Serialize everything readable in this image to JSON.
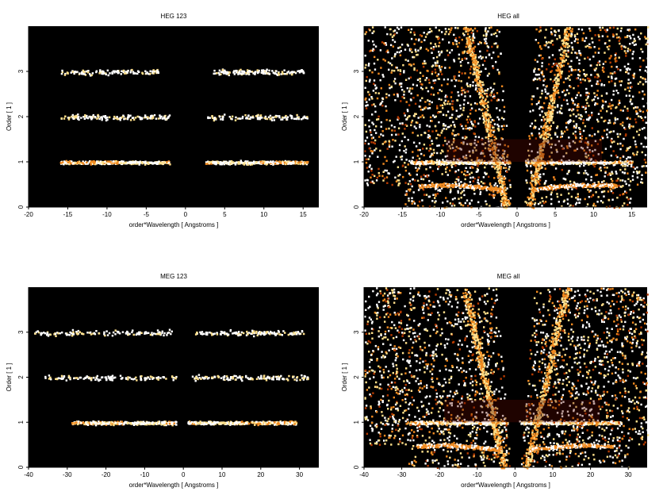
{
  "chart_data": [
    {
      "type": "heatmap",
      "title": "HEG 123",
      "xlabel": "order*Wavelength [ Angstroms ]",
      "ylabel": "Order [ 1 ]",
      "xlim": [
        -20,
        17
      ],
      "ylim": [
        0,
        4
      ],
      "xticks": [
        -20,
        -15,
        -10,
        -5,
        0,
        5,
        10,
        15
      ],
      "yticks": [
        0,
        1,
        2,
        3
      ],
      "grid": false,
      "background": "#000000",
      "colormap": [
        "#5a0a00",
        "#b53a00",
        "#f08a20",
        "#ffe08a",
        "#ffffff"
      ],
      "bands": [
        {
          "order": 1,
          "x_ranges": [
            [
              -16,
              -2
            ],
            [
              2.5,
              15.5
            ]
          ],
          "peak_x": [
            -6,
            6
          ],
          "intensity": "high"
        },
        {
          "order": 2,
          "x_ranges": [
            [
              -16,
              -2
            ],
            [
              2.5,
              15.5
            ]
          ],
          "intensity": "low"
        },
        {
          "order": 3,
          "x_ranges": [
            [
              -16,
              -3.5
            ],
            [
              3.5,
              15
            ]
          ],
          "intensity": "low"
        }
      ]
    },
    {
      "type": "heatmap",
      "title": "HEG all",
      "xlabel": "order*Wavelength [ Angstroms ]",
      "ylabel": "Order [ 1 ]",
      "xlim": [
        -20,
        17
      ],
      "ylim": [
        0,
        4
      ],
      "xticks": [
        -20,
        -15,
        -10,
        -5,
        0,
        5,
        10,
        15
      ],
      "yticks": [
        0,
        1,
        2,
        3
      ],
      "grid": false,
      "background": "#000000",
      "colormap": [
        "#5a0a00",
        "#b53a00",
        "#f08a20",
        "#ffe08a",
        "#ffffff"
      ],
      "bands": [
        {
          "order": 1,
          "x_ranges": [
            [
              -14,
              -1
            ],
            [
              1,
              15
            ]
          ],
          "peak_x": [
            -8,
            7
          ],
          "intensity": "high"
        }
      ],
      "diffuse_background": true
    },
    {
      "type": "heatmap",
      "title": "MEG 123",
      "xlabel": "order*Wavelength [ Angstroms ]",
      "ylabel": "Order [ 1 ]",
      "xlim": [
        -40,
        35
      ],
      "ylim": [
        0,
        4
      ],
      "xticks": [
        -40,
        -30,
        -20,
        -10,
        0,
        10,
        20,
        30
      ],
      "yticks": [
        0,
        1,
        2,
        3
      ],
      "grid": false,
      "background": "#000000",
      "colormap": [
        "#5a0a00",
        "#b53a00",
        "#f08a20",
        "#ffe08a",
        "#ffffff"
      ],
      "bands": [
        {
          "order": 1,
          "x_ranges": [
            [
              -29,
              -2
            ],
            [
              1,
              29
            ]
          ],
          "peak_x": [
            -10,
            8
          ],
          "intensity": "high"
        },
        {
          "order": 2,
          "x_ranges": [
            [
              -36,
              -2
            ],
            [
              2,
              32
            ]
          ],
          "intensity": "low"
        },
        {
          "order": 3,
          "x_ranges": [
            [
              -39,
              -3
            ],
            [
              3,
              31
            ]
          ],
          "intensity": "low"
        }
      ]
    },
    {
      "type": "heatmap",
      "title": "MEG all",
      "xlabel": "order*Wavelength [ Angstroms ]",
      "ylabel": "Order [ 1 ]",
      "xlim": [
        -40,
        35
      ],
      "ylim": [
        0,
        4
      ],
      "xticks": [
        -40,
        -30,
        -20,
        -10,
        0,
        10,
        20,
        30
      ],
      "yticks": [
        0,
        1,
        2,
        3
      ],
      "grid": false,
      "background": "#000000",
      "colormap": [
        "#5a0a00",
        "#b53a00",
        "#f08a20",
        "#ffe08a",
        "#ffffff"
      ],
      "bands": [
        {
          "order": 1,
          "x_ranges": [
            [
              -28,
              -2
            ],
            [
              1,
              28
            ]
          ],
          "peak_x": [
            -12,
            9
          ],
          "intensity": "high"
        }
      ],
      "diffuse_background": true
    }
  ]
}
